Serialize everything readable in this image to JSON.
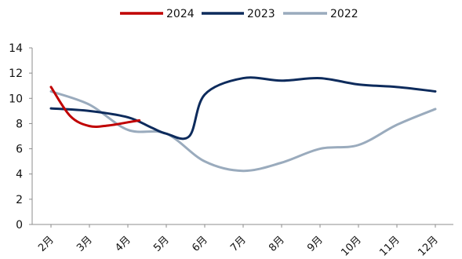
{
  "chart_data": {
    "type": "line",
    "categories": [
      "2月",
      "3月",
      "4月",
      "5月",
      "6月",
      "7月",
      "8月",
      "9月",
      "10月",
      "11月",
      "12月"
    ],
    "y_ticks": [
      "0",
      "2",
      "4",
      "6",
      "8",
      "10",
      "12",
      "14"
    ],
    "ylim": [
      0,
      14
    ],
    "grid": false,
    "legend_position": "top",
    "series": [
      {
        "name": "2024",
        "color": "#c00000",
        "points": [
          {
            "x": 0.0,
            "y": 10.9
          },
          {
            "x": 0.5,
            "y": 8.6
          },
          {
            "x": 1.0,
            "y": 7.8
          },
          {
            "x": 1.5,
            "y": 7.85
          },
          {
            "x": 2.0,
            "y": 8.1
          },
          {
            "x": 2.3,
            "y": 8.25
          }
        ]
      },
      {
        "name": "2023",
        "color": "#0d2b5c",
        "points": [
          {
            "x": 0.0,
            "y": 9.2
          },
          {
            "x": 1.0,
            "y": 9.0
          },
          {
            "x": 2.0,
            "y": 8.5
          },
          {
            "x": 2.6,
            "y": 7.7
          },
          {
            "x": 3.0,
            "y": 7.2
          },
          {
            "x": 3.6,
            "y": 7.0
          },
          {
            "x": 4.0,
            "y": 10.3
          },
          {
            "x": 5.0,
            "y": 11.6
          },
          {
            "x": 6.0,
            "y": 11.4
          },
          {
            "x": 7.0,
            "y": 11.6
          },
          {
            "x": 8.0,
            "y": 11.1
          },
          {
            "x": 9.0,
            "y": 10.9
          },
          {
            "x": 10.0,
            "y": 10.55
          }
        ]
      },
      {
        "name": "2022",
        "color": "#9aabbd",
        "points": [
          {
            "x": 0.0,
            "y": 10.55
          },
          {
            "x": 1.0,
            "y": 9.5
          },
          {
            "x": 2.0,
            "y": 7.5
          },
          {
            "x": 3.0,
            "y": 7.2
          },
          {
            "x": 4.0,
            "y": 5.0
          },
          {
            "x": 5.0,
            "y": 4.25
          },
          {
            "x": 6.0,
            "y": 4.9
          },
          {
            "x": 7.0,
            "y": 6.0
          },
          {
            "x": 8.0,
            "y": 6.3
          },
          {
            "x": 9.0,
            "y": 7.9
          },
          {
            "x": 10.0,
            "y": 9.15
          }
        ]
      }
    ]
  }
}
